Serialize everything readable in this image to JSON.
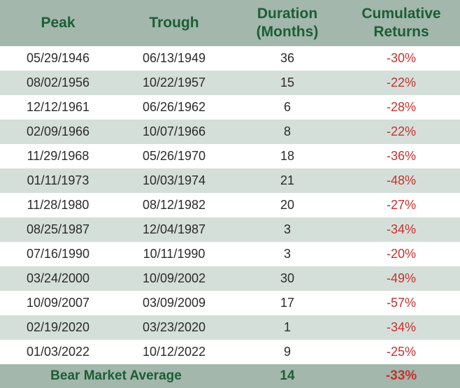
{
  "chart_data": {
    "type": "table",
    "headers": {
      "peak": "Peak",
      "trough": "Trough",
      "duration_line1": "Duration",
      "duration_line2": "(Months)",
      "returns_line1": "Cumulative",
      "returns_line2": "Returns"
    },
    "rows": [
      {
        "peak": "05/29/1946",
        "trough": "06/13/1949",
        "duration": "36",
        "returns": "-30%"
      },
      {
        "peak": "08/02/1956",
        "trough": "10/22/1957",
        "duration": "15",
        "returns": "-22%"
      },
      {
        "peak": "12/12/1961",
        "trough": "06/26/1962",
        "duration": "6",
        "returns": "-28%"
      },
      {
        "peak": "02/09/1966",
        "trough": "10/07/1966",
        "duration": "8",
        "returns": "-22%"
      },
      {
        "peak": "11/29/1968",
        "trough": "05/26/1970",
        "duration": "18",
        "returns": "-36%"
      },
      {
        "peak": "01/11/1973",
        "trough": "10/03/1974",
        "duration": "21",
        "returns": "-48%"
      },
      {
        "peak": "11/28/1980",
        "trough": "08/12/1982",
        "duration": "20",
        "returns": "-27%"
      },
      {
        "peak": "08/25/1987",
        "trough": "12/04/1987",
        "duration": "3",
        "returns": "-34%"
      },
      {
        "peak": "07/16/1990",
        "trough": "10/11/1990",
        "duration": "3",
        "returns": "-20%"
      },
      {
        "peak": "03/24/2000",
        "trough": "10/09/2002",
        "duration": "30",
        "returns": "-49%"
      },
      {
        "peak": "10/09/2007",
        "trough": "03/09/2009",
        "duration": "17",
        "returns": "-57%"
      },
      {
        "peak": "02/19/2020",
        "trough": "03/23/2020",
        "duration": "1",
        "returns": "-34%"
      },
      {
        "peak": "01/03/2022",
        "trough": "10/12/2022",
        "duration": "9",
        "returns": "-25%"
      }
    ],
    "footer": {
      "label": "Bear Market Average",
      "duration": "14",
      "returns": "-33%"
    },
    "colors": {
      "header_bg": "#a3b7ac",
      "header_text": "#1c5e35",
      "row_alt_bg": "#d5dfd9",
      "negative_text": "#c8312f"
    }
  }
}
